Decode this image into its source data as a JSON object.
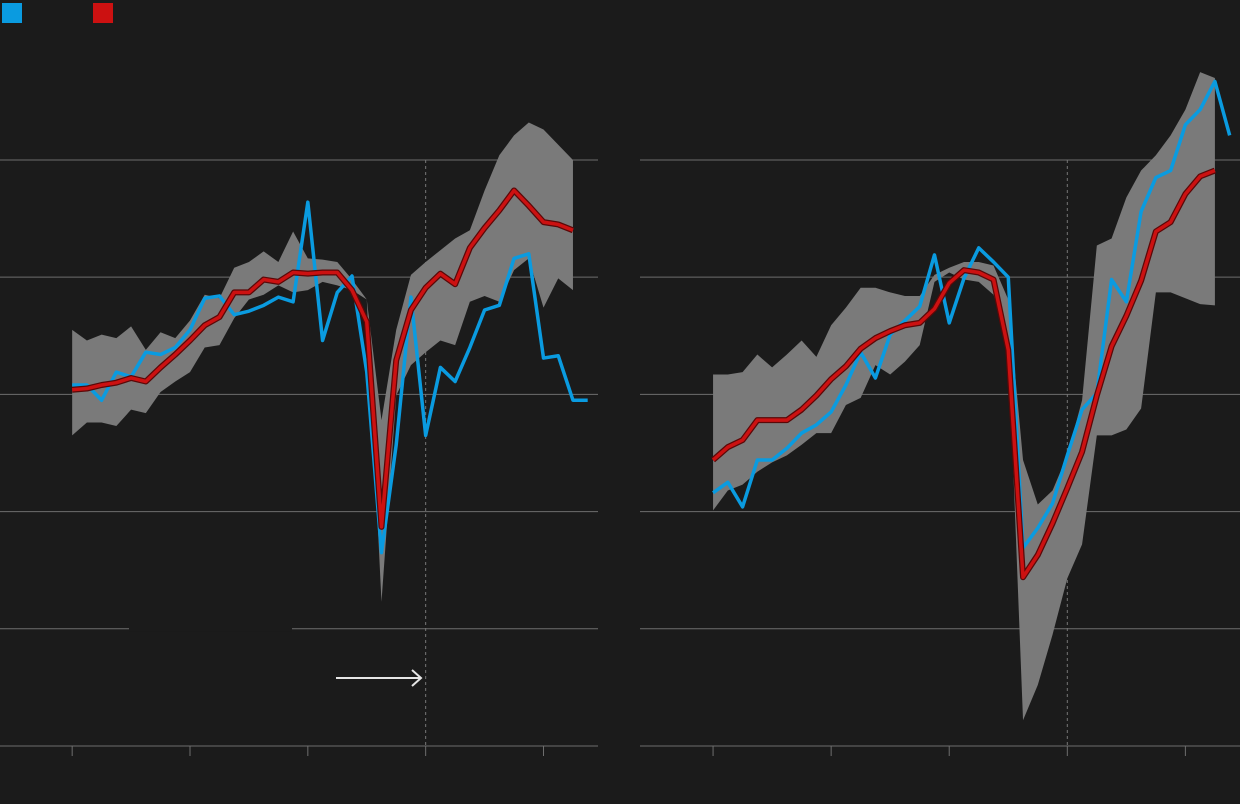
{
  "chart_data": [
    {
      "type": "line",
      "x": [
        0,
        1,
        2,
        3,
        4,
        5,
        6,
        7,
        8,
        9,
        10,
        11,
        12,
        13,
        14,
        15,
        16,
        17,
        18,
        19,
        20,
        21,
        22,
        23,
        24,
        25,
        26,
        27,
        28,
        29,
        30,
        31,
        32,
        33,
        34,
        35
      ],
      "xlim": [
        -4.9,
        35.7
      ],
      "xticks": [
        0,
        8,
        16,
        24,
        32
      ],
      "vline": 24,
      "ylim": [
        0,
        5.9
      ],
      "yticks": [
        0,
        1,
        2,
        3,
        4,
        5
      ],
      "grid": true,
      "band": {
        "color": "#7a7a7a",
        "upper": [
          3.55,
          3.46,
          3.51,
          3.48,
          3.58,
          3.38,
          3.53,
          3.48,
          3.63,
          3.85,
          3.82,
          4.08,
          4.13,
          4.22,
          4.13,
          4.39,
          4.16,
          4.15,
          4.13,
          3.98,
          3.81,
          2.78,
          3.55,
          4.02,
          4.13,
          4.23,
          4.33,
          4.4,
          4.74,
          5.04,
          5.21,
          5.32,
          5.26,
          5.13,
          5.0,
          null
        ],
        "lower": [
          2.65,
          2.76,
          2.76,
          2.73,
          2.87,
          2.84,
          3.02,
          3.11,
          3.19,
          3.4,
          3.42,
          3.65,
          3.81,
          3.85,
          3.93,
          3.87,
          3.89,
          3.96,
          3.93,
          3.89,
          3.81,
          1.23,
          2.99,
          3.25,
          3.36,
          3.46,
          3.42,
          3.79,
          3.84,
          3.79,
          4.06,
          4.16,
          3.74,
          3.99,
          3.89,
          null
        ]
      },
      "series": [
        {
          "color": "#0a9be0",
          "values": [
            3.08,
            3.08,
            2.95,
            3.19,
            3.15,
            3.36,
            3.34,
            3.4,
            3.55,
            3.82,
            3.84,
            3.68,
            3.71,
            3.76,
            3.83,
            3.79,
            4.64,
            3.46,
            3.87,
            4.01,
            3.19,
            1.65,
            2.57,
            3.83,
            2.65,
            3.23,
            3.11,
            3.4,
            3.72,
            3.76,
            4.16,
            4.2,
            3.31,
            3.33,
            2.95,
            2.95
          ]
        },
        {
          "color": "#cc1111",
          "values": [
            3.04,
            3.05,
            3.08,
            3.1,
            3.14,
            3.11,
            3.23,
            3.34,
            3.46,
            3.59,
            3.66,
            3.87,
            3.87,
            3.98,
            3.96,
            4.04,
            4.03,
            4.04,
            4.04,
            3.89,
            3.62,
            1.87,
            3.29,
            3.72,
            3.91,
            4.03,
            3.94,
            4.25,
            4.42,
            4.57,
            4.74,
            4.61,
            4.47,
            4.45,
            4.4,
            null
          ]
        }
      ]
    },
    {
      "type": "line",
      "x": [
        0,
        1,
        2,
        3,
        4,
        5,
        6,
        7,
        8,
        9,
        10,
        11,
        12,
        13,
        14,
        15,
        16,
        17,
        18,
        19,
        20,
        21,
        22,
        23,
        24,
        25,
        26,
        27,
        28,
        29,
        30,
        31,
        32,
        33,
        34,
        35
      ],
      "xlim": [
        -4.95,
        35.7
      ],
      "xticks": [
        0,
        8,
        16,
        24,
        32
      ],
      "vline": 24,
      "ylim": [
        0,
        5.9
      ],
      "yticks": [
        0,
        1,
        2,
        3,
        4,
        5
      ],
      "grid": true,
      "band": {
        "color": "#7a7a7a",
        "upper": [
          3.17,
          3.17,
          3.19,
          3.34,
          3.23,
          3.34,
          3.46,
          3.32,
          3.59,
          3.74,
          3.91,
          3.91,
          3.87,
          3.84,
          3.84,
          4.02,
          4.08,
          4.13,
          4.13,
          4.1,
          3.81,
          2.44,
          2.06,
          2.18,
          2.48,
          2.95,
          4.27,
          4.33,
          4.68,
          4.91,
          5.04,
          5.21,
          5.43,
          5.75,
          5.7,
          null
        ],
        "lower": [
          2.01,
          2.18,
          2.23,
          2.34,
          2.42,
          2.48,
          2.57,
          2.67,
          2.67,
          2.91,
          2.97,
          3.25,
          3.17,
          3.28,
          3.42,
          3.96,
          4.04,
          3.98,
          3.96,
          3.85,
          3.46,
          0.22,
          0.52,
          0.95,
          1.43,
          1.72,
          2.65,
          2.65,
          2.7,
          2.88,
          3.87,
          3.87,
          3.82,
          3.77,
          3.76,
          null
        ]
      },
      "series": [
        {
          "color": "#0a9be0",
          "values": [
            2.16,
            2.25,
            2.04,
            2.44,
            2.44,
            2.54,
            2.67,
            2.74,
            2.85,
            3.08,
            3.36,
            3.14,
            3.51,
            3.63,
            3.75,
            4.19,
            3.61,
            3.99,
            4.25,
            4.13,
            4.0,
            1.69,
            1.86,
            2.07,
            2.48,
            2.87,
            3.01,
            3.98,
            3.79,
            4.56,
            4.85,
            4.91,
            5.3,
            5.43,
            5.67,
            5.21
          ]
        },
        {
          "color": "#cc1111",
          "values": [
            2.44,
            2.55,
            2.61,
            2.78,
            2.78,
            2.78,
            2.87,
            2.99,
            3.13,
            3.24,
            3.39,
            3.48,
            3.54,
            3.59,
            3.61,
            3.73,
            3.95,
            4.06,
            4.04,
            3.98,
            3.38,
            1.44,
            1.63,
            1.9,
            2.2,
            2.51,
            2.99,
            3.41,
            3.67,
            3.97,
            4.39,
            4.47,
            4.71,
            4.86,
            4.91,
            null
          ]
        }
      ]
    }
  ]
}
